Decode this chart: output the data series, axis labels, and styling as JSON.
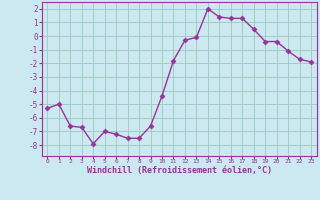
{
  "x": [
    0,
    1,
    2,
    3,
    4,
    5,
    6,
    7,
    8,
    9,
    10,
    11,
    12,
    13,
    14,
    15,
    16,
    17,
    18,
    19,
    20,
    21,
    22,
    23
  ],
  "y": [
    -5.3,
    -5.0,
    -6.6,
    -6.7,
    -7.9,
    -7.0,
    -7.2,
    -7.5,
    -7.5,
    -6.6,
    -4.4,
    -1.8,
    -0.3,
    -0.1,
    2.0,
    1.4,
    1.3,
    1.3,
    0.5,
    -0.4,
    -0.4,
    -1.1,
    -1.7,
    -1.9
  ],
  "line_color": "#993399",
  "marker": "D",
  "markersize": 2.5,
  "linewidth": 1.0,
  "xlabel": "Windchill (Refroidissement éolien,°C)",
  "ylim": [
    -8.8,
    2.5
  ],
  "xlim": [
    -0.5,
    23.5
  ],
  "yticks": [
    -8,
    -7,
    -6,
    -5,
    -4,
    -3,
    -2,
    -1,
    0,
    1,
    2
  ],
  "xticks": [
    0,
    1,
    2,
    3,
    4,
    5,
    6,
    7,
    8,
    9,
    10,
    11,
    12,
    13,
    14,
    15,
    16,
    17,
    18,
    19,
    20,
    21,
    22,
    23
  ],
  "bg_color": "#cce8f0",
  "grid_color": "#99ccbb",
  "line_border_color": "#7700aa",
  "tick_color": "#993399",
  "label_color": "#993399",
  "spine_color": "#993399"
}
